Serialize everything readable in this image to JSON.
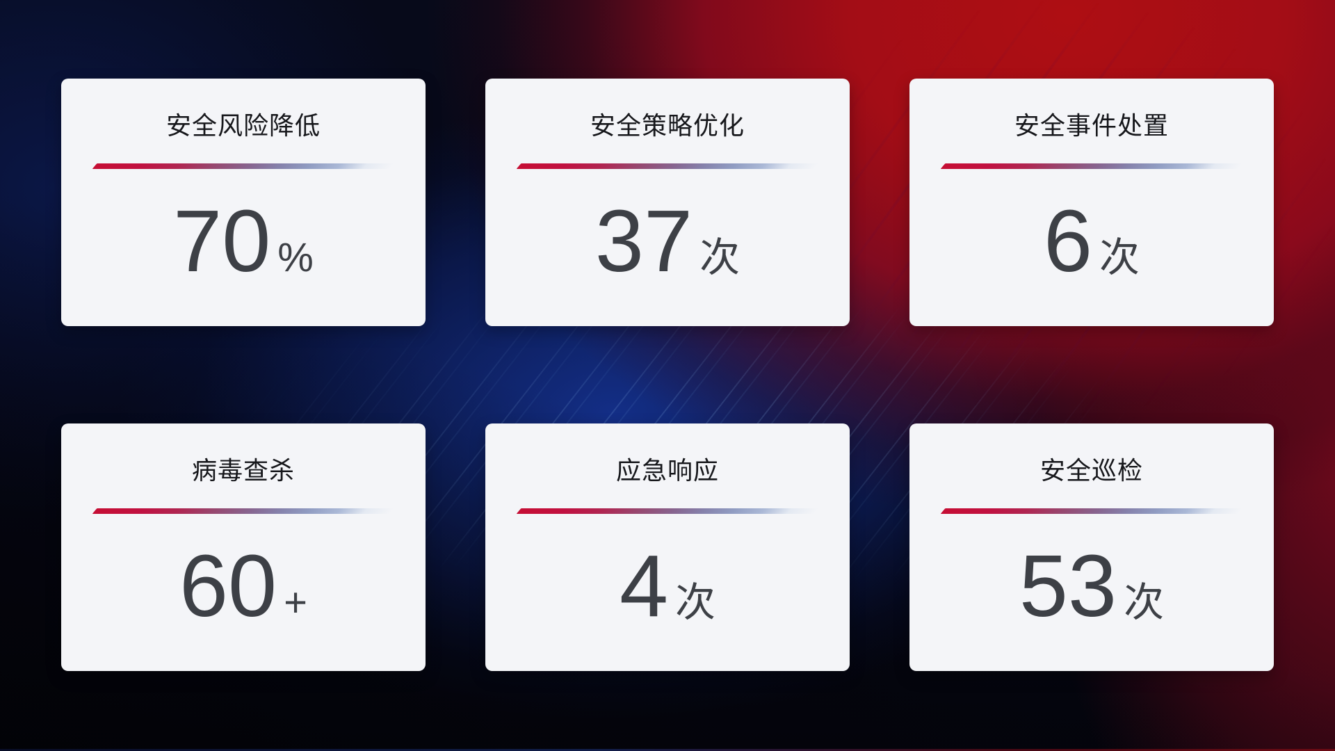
{
  "cards": [
    {
      "title": "安全风险降低",
      "value": "70",
      "unit": "%"
    },
    {
      "title": "安全策略优化",
      "value": "37",
      "unit": "次"
    },
    {
      "title": "安全事件处置",
      "value": "6",
      "unit": "次"
    },
    {
      "title": "病毒查杀",
      "value": "60",
      "unit": "+"
    },
    {
      "title": "应急响应",
      "value": "4",
      "unit": "次"
    },
    {
      "title": "安全巡检",
      "value": "53",
      "unit": "次"
    }
  ],
  "colors": {
    "card_background": "#f4f5f8",
    "title_text": "#16171b",
    "value_text": "#3d4046",
    "divider_red": "#c50e34",
    "divider_blue": "#aab8d6",
    "background_red": "#a80d14",
    "background_blue": "#12306e",
    "background_dark": "#05060e"
  }
}
